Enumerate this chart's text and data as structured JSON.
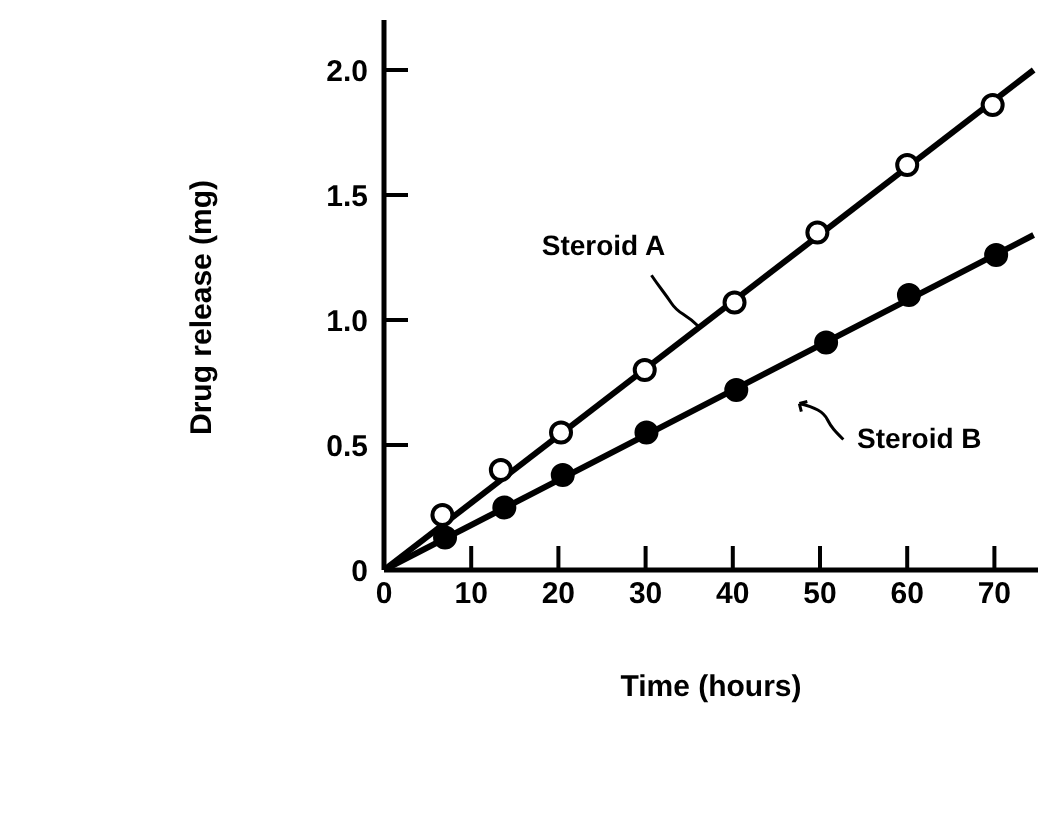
{
  "chart_data": {
    "type": "scatter",
    "xlabel": "Time (hours)",
    "ylabel": "Drug release (mg)",
    "xlim": [
      0,
      75
    ],
    "ylim": [
      0,
      2.2
    ],
    "xticks": [
      0,
      10,
      20,
      30,
      40,
      50,
      60,
      70
    ],
    "yticks": [
      0,
      0.5,
      {
        "value": 1,
        "label": "1.0"
      },
      1.5,
      {
        "value": 2,
        "label": "2.0"
      }
    ],
    "grid": false,
    "marker": "circle",
    "series": [
      {
        "name": "Steroid A",
        "color": "#ffffff",
        "x": [
          6.7,
          13.4,
          20.3,
          29.9,
          40.2,
          49.7,
          60.0,
          69.8
        ],
        "values": [
          0.22,
          0.4,
          0.55,
          0.8,
          1.07,
          1.35,
          1.62,
          1.86
        ]
      },
      {
        "name": "Steroid B",
        "color": "#000000",
        "x": [
          7.0,
          13.8,
          20.5,
          30.1,
          40.4,
          50.7,
          60.2,
          70.2
        ],
        "values": [
          0.13,
          0.25,
          0.38,
          0.55,
          0.72,
          0.91,
          1.1,
          1.26
        ]
      },
      {
        "type": "line",
        "marker": "none",
        "color": "#000000",
        "line_style": "solid",
        "x": [
          0,
          74.5
        ],
        "values": [
          0,
          2.0
        ]
      },
      {
        "type": "line",
        "marker": "none",
        "color": "#000000",
        "line_style": "solid",
        "x": [
          0,
          74.5
        ],
        "values": [
          0,
          1.34
        ]
      }
    ]
  }
}
